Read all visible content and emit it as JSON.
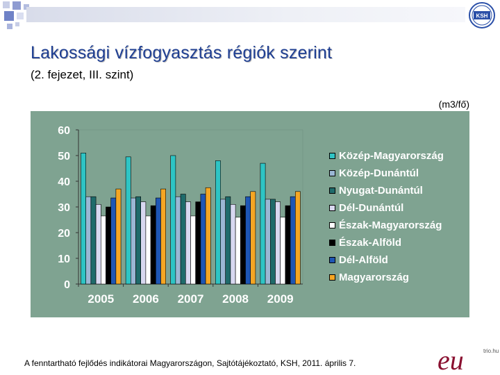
{
  "header": {
    "title": "Lakossági vízfogyasztás régiók szerint",
    "subtitle": "(2. fejezet, III. szint)",
    "logo_text": "KSH"
  },
  "chart_data": {
    "type": "bar",
    "title": "",
    "unit_label": "(m3/fő)",
    "xlabel": "",
    "ylabel": "",
    "categories": [
      "2005",
      "2006",
      "2007",
      "2008",
      "2009"
    ],
    "yticks": [
      "0",
      "10",
      "20",
      "30",
      "40",
      "50",
      "60"
    ],
    "ylim": [
      0,
      60
    ],
    "grid": false,
    "legend_position": "right",
    "series": [
      {
        "name": "Közép-Magyarország",
        "color": "#2ec4c4",
        "values": [
          51,
          49.5,
          50,
          48,
          47
        ]
      },
      {
        "name": "Közép-Dunántúl",
        "color": "#9bb7d4",
        "values": [
          34,
          33.5,
          34,
          33,
          33
        ]
      },
      {
        "name": "Nyugat-Dunántúl",
        "color": "#1f6b6b",
        "values": [
          34,
          34,
          35,
          34,
          33
        ]
      },
      {
        "name": "Dél-Dunántúl",
        "color": "#d8d8f0",
        "values": [
          31,
          32,
          32,
          31,
          32
        ]
      },
      {
        "name": "Észak-Magyarország",
        "color": "#ffffff",
        "values": [
          26.5,
          26.5,
          26.5,
          26,
          26
        ]
      },
      {
        "name": "Észak-Alföld",
        "color": "#000000",
        "values": [
          30,
          30.5,
          32,
          30.5,
          30.5
        ]
      },
      {
        "name": "Dél-Alföld",
        "color": "#1e56b4",
        "values": [
          33.5,
          33.5,
          35,
          34,
          34
        ]
      },
      {
        "name": "Magyarország",
        "color": "#f5a623",
        "values": [
          37,
          37,
          37.5,
          36,
          36
        ]
      }
    ]
  },
  "footer": {
    "source": "A fenntartható fejlődés indikátorai Magyarországon, Sajtótájékoztató, KSH, 2011. április 7.",
    "brand_text": "eu",
    "brand_small": "trio.hu"
  }
}
